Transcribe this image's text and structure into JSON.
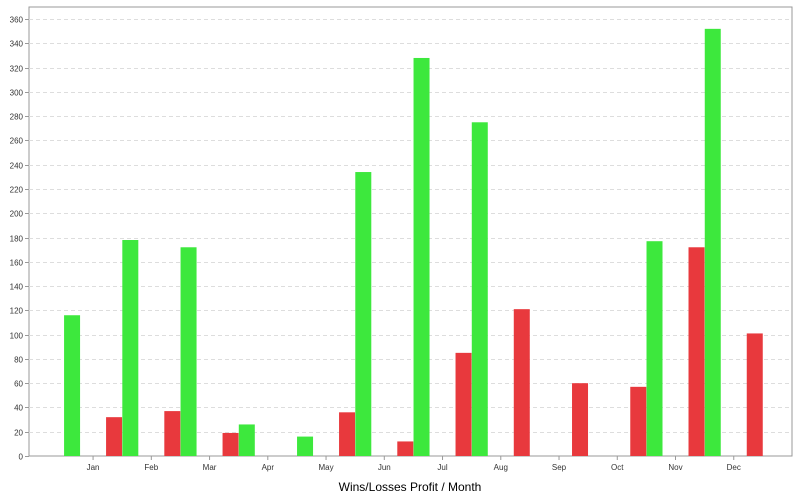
{
  "chart_data": {
    "type": "bar",
    "title": "",
    "xlabel": "Wins/Losses Profit / Month",
    "ylabel": "",
    "categories": [
      "Jan",
      "Feb",
      "Mar",
      "Apr",
      "May",
      "Jun",
      "Jul",
      "Aug",
      "Sep",
      "Oct",
      "Nov",
      "Dec"
    ],
    "series": [
      {
        "color": "#3de83d",
        "values": [
          116,
          178,
          172,
          26,
          16,
          234,
          328,
          275,
          0,
          0,
          177,
          352
        ]
      },
      {
        "color": "#e8393d",
        "values": [
          32,
          37,
          19,
          0,
          36,
          12,
          85,
          121,
          60,
          57,
          172,
          101
        ]
      }
    ],
    "ylim": [
      0,
      370
    ],
    "yticks": [
      0,
      20,
      40,
      60,
      80,
      100,
      120,
      140,
      160,
      180,
      200,
      220,
      240,
      260,
      280,
      300,
      320,
      340,
      360
    ],
    "grid": true,
    "legend": "none"
  },
  "colors": {
    "grid": "#dddddd",
    "axis": "#999999",
    "background": "#ffffff"
  }
}
